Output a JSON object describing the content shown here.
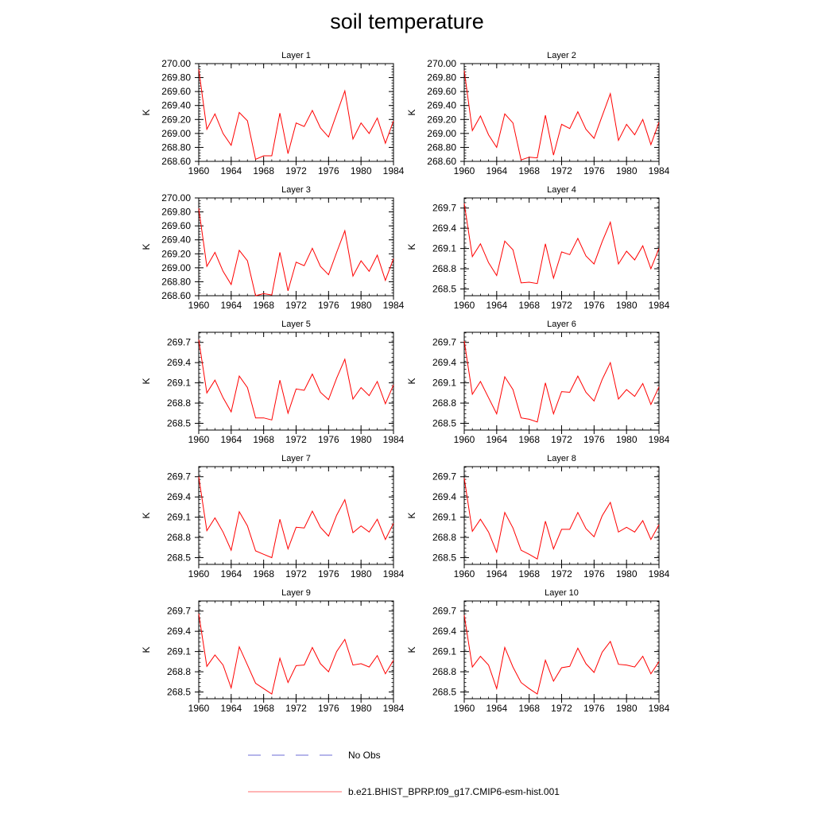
{
  "title": "soil temperature",
  "legend": [
    {
      "label": "No Obs",
      "color": "#6b6bd6",
      "dash": true
    },
    {
      "label": "b.e21.BHIST_BPRP.f09_g17.CMIP6-esm-hist.001",
      "color": "#ff6b6b",
      "dash": false
    }
  ],
  "chart_data": [
    {
      "type": "line",
      "title": "Layer 1",
      "ylabel": "K",
      "xlim": [
        1960,
        1984
      ],
      "ylim": [
        268.6,
        270.0
      ],
      "yticks": [
        270.0,
        269.8,
        269.6,
        269.4,
        269.2,
        269.0,
        268.8,
        268.6
      ],
      "ytick_decimals": 2,
      "xticks": [
        1960,
        1964,
        1968,
        1972,
        1976,
        1980,
        1984
      ],
      "color": "#ff0000",
      "x": [
        1960,
        1961,
        1962,
        1963,
        1964,
        1965,
        1966,
        1967,
        1968,
        1969,
        1970,
        1971,
        1972,
        1973,
        1974,
        1975,
        1976,
        1977,
        1978,
        1979,
        1980,
        1981,
        1982,
        1983,
        1984
      ],
      "y": [
        269.92,
        269.06,
        269.28,
        269.0,
        268.83,
        269.3,
        269.18,
        268.63,
        268.68,
        268.68,
        269.29,
        268.71,
        269.15,
        269.1,
        269.33,
        269.08,
        268.95,
        269.28,
        269.61,
        268.92,
        269.15,
        269.0,
        269.22,
        268.86,
        269.18
      ]
    },
    {
      "type": "line",
      "title": "Layer 2",
      "ylabel": "K",
      "xlim": [
        1960,
        1984
      ],
      "ylim": [
        268.6,
        270.0
      ],
      "yticks": [
        270.0,
        269.8,
        269.6,
        269.4,
        269.2,
        269.0,
        268.8,
        268.6
      ],
      "ytick_decimals": 2,
      "xticks": [
        1960,
        1964,
        1968,
        1972,
        1976,
        1980,
        1984
      ],
      "color": "#ff0000",
      "x": [
        1960,
        1961,
        1962,
        1963,
        1964,
        1965,
        1966,
        1967,
        1968,
        1969,
        1970,
        1971,
        1972,
        1973,
        1974,
        1975,
        1976,
        1977,
        1978,
        1979,
        1980,
        1981,
        1982,
        1983,
        1984
      ],
      "y": [
        269.9,
        269.04,
        269.25,
        268.98,
        268.8,
        269.28,
        269.15,
        268.62,
        268.66,
        268.65,
        269.26,
        268.69,
        269.13,
        269.07,
        269.31,
        269.06,
        268.93,
        269.25,
        269.57,
        268.9,
        269.13,
        268.98,
        269.2,
        268.84,
        269.16
      ]
    },
    {
      "type": "line",
      "title": "Layer 3",
      "ylabel": "K",
      "xlim": [
        1960,
        1984
      ],
      "ylim": [
        268.6,
        270.0
      ],
      "yticks": [
        270.0,
        269.8,
        269.6,
        269.4,
        269.2,
        269.0,
        268.8,
        268.6
      ],
      "ytick_decimals": 2,
      "xticks": [
        1960,
        1964,
        1968,
        1972,
        1976,
        1980,
        1984
      ],
      "color": "#ff0000",
      "x": [
        1960,
        1961,
        1962,
        1963,
        1964,
        1965,
        1966,
        1967,
        1968,
        1969,
        1970,
        1971,
        1972,
        1973,
        1974,
        1975,
        1976,
        1977,
        1978,
        1979,
        1980,
        1981,
        1982,
        1983,
        1984
      ],
      "y": [
        269.85,
        269.02,
        269.22,
        268.95,
        268.76,
        269.25,
        269.1,
        268.6,
        268.63,
        268.61,
        269.22,
        268.67,
        269.08,
        269.03,
        269.28,
        269.02,
        268.9,
        269.22,
        269.53,
        268.88,
        269.1,
        268.95,
        269.18,
        268.82,
        269.13
      ]
    },
    {
      "type": "line",
      "title": "Layer 4",
      "ylabel": "K",
      "xlim": [
        1960,
        1984
      ],
      "ylim": [
        268.4,
        269.85
      ],
      "yticks": [
        269.7,
        269.4,
        269.1,
        268.8,
        268.5
      ],
      "ytick_decimals": 1,
      "xticks": [
        1960,
        1964,
        1968,
        1972,
        1976,
        1980,
        1984
      ],
      "color": "#ff0000",
      "x": [
        1960,
        1961,
        1962,
        1963,
        1964,
        1965,
        1966,
        1967,
        1968,
        1969,
        1970,
        1971,
        1972,
        1973,
        1974,
        1975,
        1976,
        1977,
        1978,
        1979,
        1980,
        1981,
        1982,
        1983,
        1984
      ],
      "y": [
        269.77,
        268.98,
        269.17,
        268.89,
        268.7,
        269.21,
        269.08,
        268.59,
        268.6,
        268.58,
        269.17,
        268.66,
        269.05,
        269.01,
        269.25,
        268.99,
        268.87,
        269.2,
        269.49,
        268.87,
        269.06,
        268.93,
        269.14,
        268.8,
        269.1
      ]
    },
    {
      "type": "line",
      "title": "Layer 5",
      "ylabel": "K",
      "xlim": [
        1960,
        1984
      ],
      "ylim": [
        268.4,
        269.85
      ],
      "yticks": [
        269.7,
        269.4,
        269.1,
        268.8,
        268.5
      ],
      "ytick_decimals": 1,
      "xticks": [
        1960,
        1964,
        1968,
        1972,
        1976,
        1980,
        1984
      ],
      "color": "#ff0000",
      "x": [
        1960,
        1961,
        1962,
        1963,
        1964,
        1965,
        1966,
        1967,
        1968,
        1969,
        1970,
        1971,
        1972,
        1973,
        1974,
        1975,
        1976,
        1977,
        1978,
        1979,
        1980,
        1981,
        1982,
        1983,
        1984
      ],
      "y": [
        269.74,
        268.95,
        269.14,
        268.88,
        268.67,
        269.2,
        269.03,
        268.58,
        268.58,
        268.55,
        269.14,
        268.65,
        269.01,
        268.99,
        269.23,
        268.96,
        268.85,
        269.17,
        269.45,
        268.86,
        269.03,
        268.91,
        269.12,
        268.79,
        269.07
      ]
    },
    {
      "type": "line",
      "title": "Layer 6",
      "ylabel": "K",
      "xlim": [
        1960,
        1984
      ],
      "ylim": [
        268.4,
        269.85
      ],
      "yticks": [
        269.7,
        269.4,
        269.1,
        268.8,
        268.5
      ],
      "ytick_decimals": 1,
      "xticks": [
        1960,
        1964,
        1968,
        1972,
        1976,
        1980,
        1984
      ],
      "color": "#ff0000",
      "x": [
        1960,
        1961,
        1962,
        1963,
        1964,
        1965,
        1966,
        1967,
        1968,
        1969,
        1970,
        1971,
        1972,
        1973,
        1974,
        1975,
        1976,
        1977,
        1978,
        1979,
        1980,
        1981,
        1982,
        1983,
        1984
      ],
      "y": [
        269.72,
        268.93,
        269.12,
        268.88,
        268.64,
        269.19,
        269.0,
        268.58,
        268.56,
        268.52,
        269.1,
        268.64,
        268.97,
        268.96,
        269.2,
        268.96,
        268.83,
        269.15,
        269.4,
        268.86,
        269.0,
        268.9,
        269.09,
        268.78,
        269.04
      ]
    },
    {
      "type": "line",
      "title": "Layer 7",
      "ylabel": "K",
      "xlim": [
        1960,
        1984
      ],
      "ylim": [
        268.4,
        269.85
      ],
      "yticks": [
        269.7,
        269.4,
        269.1,
        268.8,
        268.5
      ],
      "ytick_decimals": 1,
      "xticks": [
        1960,
        1964,
        1968,
        1972,
        1976,
        1980,
        1984
      ],
      "color": "#ff0000",
      "x": [
        1960,
        1961,
        1962,
        1963,
        1964,
        1965,
        1966,
        1967,
        1968,
        1969,
        1970,
        1971,
        1972,
        1973,
        1974,
        1975,
        1976,
        1977,
        1978,
        1979,
        1980,
        1981,
        1982,
        1983,
        1984
      ],
      "y": [
        269.7,
        268.9,
        269.09,
        268.88,
        268.61,
        269.18,
        268.97,
        268.6,
        268.55,
        268.5,
        269.07,
        268.63,
        268.95,
        268.94,
        269.19,
        268.95,
        268.82,
        269.13,
        269.36,
        268.87,
        268.97,
        268.88,
        269.07,
        268.77,
        269.01
      ]
    },
    {
      "type": "line",
      "title": "Layer 8",
      "ylabel": "K",
      "xlim": [
        1960,
        1984
      ],
      "ylim": [
        268.4,
        269.85
      ],
      "yticks": [
        269.7,
        269.4,
        269.1,
        268.8,
        268.5
      ],
      "ytick_decimals": 1,
      "xticks": [
        1960,
        1964,
        1968,
        1972,
        1976,
        1980,
        1984
      ],
      "color": "#ff0000",
      "x": [
        1960,
        1961,
        1962,
        1963,
        1964,
        1965,
        1966,
        1967,
        1968,
        1969,
        1970,
        1971,
        1972,
        1973,
        1974,
        1975,
        1976,
        1977,
        1978,
        1979,
        1980,
        1981,
        1982,
        1983,
        1984
      ],
      "y": [
        269.68,
        268.89,
        269.07,
        268.88,
        268.58,
        269.17,
        268.94,
        268.61,
        268.55,
        268.48,
        269.04,
        268.63,
        268.92,
        268.92,
        269.17,
        268.93,
        268.81,
        269.12,
        269.32,
        268.88,
        268.95,
        268.88,
        269.05,
        268.77,
        268.99
      ]
    },
    {
      "type": "line",
      "title": "Layer 9",
      "ylabel": "K",
      "xlim": [
        1960,
        1984
      ],
      "ylim": [
        268.4,
        269.85
      ],
      "yticks": [
        269.7,
        269.4,
        269.1,
        268.8,
        268.5
      ],
      "ytick_decimals": 1,
      "xticks": [
        1960,
        1964,
        1968,
        1972,
        1976,
        1980,
        1984
      ],
      "color": "#ff0000",
      "x": [
        1960,
        1961,
        1962,
        1963,
        1964,
        1965,
        1966,
        1967,
        1968,
        1969,
        1970,
        1971,
        1972,
        1973,
        1974,
        1975,
        1976,
        1977,
        1978,
        1979,
        1980,
        1981,
        1982,
        1983,
        1984
      ],
      "y": [
        269.66,
        268.88,
        269.05,
        268.9,
        268.56,
        269.17,
        268.9,
        268.63,
        268.55,
        268.47,
        269.0,
        268.64,
        268.89,
        268.9,
        269.16,
        268.92,
        268.8,
        269.1,
        269.28,
        268.9,
        268.92,
        268.87,
        269.04,
        268.77,
        268.97
      ]
    },
    {
      "type": "line",
      "title": "Layer 10",
      "ylabel": "K",
      "xlim": [
        1960,
        1984
      ],
      "ylim": [
        268.4,
        269.85
      ],
      "yticks": [
        269.7,
        269.4,
        269.1,
        268.8,
        268.5
      ],
      "ytick_decimals": 1,
      "xticks": [
        1960,
        1964,
        1968,
        1972,
        1976,
        1980,
        1984
      ],
      "color": "#ff0000",
      "x": [
        1960,
        1961,
        1962,
        1963,
        1964,
        1965,
        1966,
        1967,
        1968,
        1969,
        1970,
        1971,
        1972,
        1973,
        1974,
        1975,
        1976,
        1977,
        1978,
        1979,
        1980,
        1981,
        1982,
        1983,
        1984
      ],
      "y": [
        269.64,
        268.87,
        269.03,
        268.9,
        268.55,
        269.16,
        268.87,
        268.64,
        268.55,
        268.47,
        268.97,
        268.66,
        268.86,
        268.88,
        269.15,
        268.92,
        268.79,
        269.09,
        269.25,
        268.91,
        268.9,
        268.87,
        269.03,
        268.77,
        268.95
      ]
    }
  ]
}
